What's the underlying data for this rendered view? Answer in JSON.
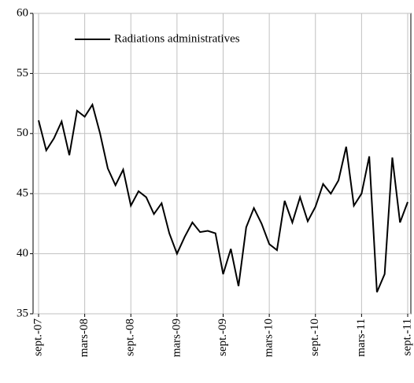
{
  "chart_data": {
    "type": "line",
    "categories": [
      "sept.-07",
      null,
      null,
      null,
      null,
      null,
      "mars-08",
      null,
      null,
      null,
      null,
      null,
      "sept.-08",
      null,
      null,
      null,
      null,
      null,
      "mars-09",
      null,
      null,
      null,
      null,
      null,
      "sept.-09",
      null,
      null,
      null,
      null,
      null,
      "mars-10",
      null,
      null,
      null,
      null,
      null,
      "sept.-10",
      null,
      null,
      null,
      null,
      null,
      "mars-11",
      null,
      null,
      null,
      null,
      null,
      "sept.-11"
    ],
    "series": [
      {
        "name": "Radiations administratives",
        "color": "#000000",
        "values": [
          51.1,
          48.6,
          49.6,
          51.0,
          48.2,
          51.9,
          51.4,
          52.4,
          50.0,
          47.1,
          45.7,
          47.0,
          44.0,
          45.2,
          44.7,
          43.3,
          44.2,
          41.7,
          40.0,
          41.4,
          42.6,
          41.8,
          41.9,
          41.7,
          38.3,
          40.4,
          37.3,
          42.2,
          43.8,
          42.5,
          40.8,
          40.3,
          44.4,
          42.6,
          44.7,
          42.7,
          43.9,
          45.8,
          45.0,
          46.1,
          48.9,
          44.0,
          45.0,
          48.1,
          36.8,
          38.3,
          48.0,
          42.6,
          44.3
        ]
      }
    ],
    "ylim": [
      35,
      60
    ],
    "yticks": [
      35,
      40,
      45,
      50,
      55,
      60
    ],
    "grid": true,
    "legend": "upper left"
  }
}
